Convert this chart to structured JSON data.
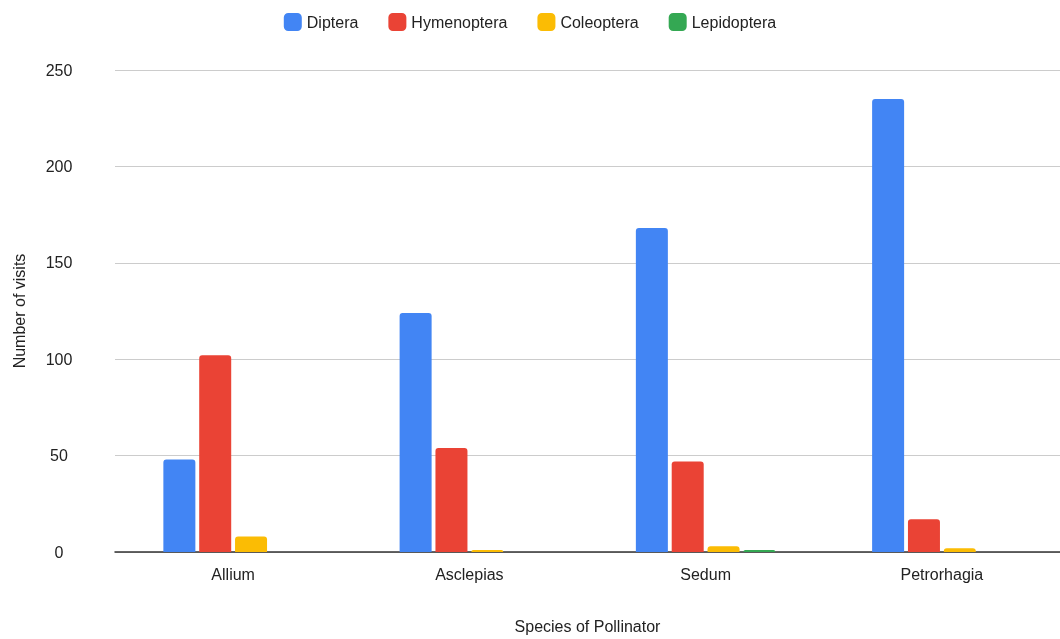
{
  "chart_data": {
    "type": "bar",
    "xlabel": "Species of Pollinator",
    "ylabel": "Number of visits",
    "categories": [
      "Allium",
      "Asclepias",
      "Sedum",
      "Petrorhagia"
    ],
    "series": [
      {
        "name": "Diptera",
        "color": "#4285f4",
        "values": [
          48,
          124,
          168,
          235
        ]
      },
      {
        "name": "Hymenoptera",
        "color": "#ea4335",
        "values": [
          102,
          54,
          47,
          17
        ]
      },
      {
        "name": "Coleoptera",
        "color": "#fbbc04",
        "values": [
          8,
          1,
          3,
          2
        ]
      },
      {
        "name": "Lepidoptera",
        "color": "#34a853",
        "values": [
          0,
          0,
          1,
          0
        ]
      }
    ],
    "ylim": [
      0,
      250
    ],
    "yticks": [
      0,
      50,
      100,
      150,
      200,
      250
    ],
    "grid": "y",
    "legend": "top"
  }
}
